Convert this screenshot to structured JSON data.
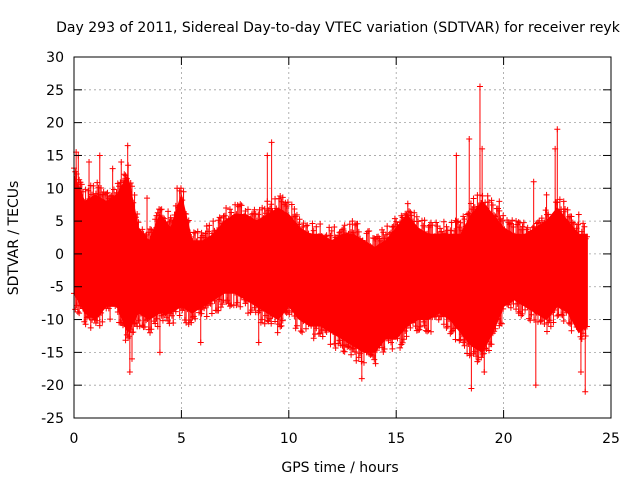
{
  "chart_data": {
    "type": "scatter",
    "title": "Day 293 of 2011, Sidereal Day-to-day VTEC variation (SDTVAR) for receiver reyk",
    "xlabel": "GPS time / hours",
    "ylabel": "SDTVAR / TECUs",
    "xlim": [
      0,
      25
    ],
    "ylim": [
      -25,
      30
    ],
    "xticks": [
      0,
      5,
      10,
      15,
      20,
      25
    ],
    "yticks": [
      -25,
      -20,
      -15,
      -10,
      -5,
      0,
      5,
      10,
      15,
      20,
      25,
      30
    ],
    "grid": true,
    "marker": "+",
    "color": "#ff0000",
    "envelope": {
      "x": [
        0,
        0.5,
        1,
        1.5,
        2,
        2.5,
        3,
        3.5,
        4,
        4.5,
        5,
        5.5,
        6,
        6.5,
        7,
        7.5,
        8,
        8.5,
        9,
        9.5,
        10,
        10.5,
        11,
        11.5,
        12,
        12.5,
        13,
        13.5,
        14,
        14.5,
        15,
        15.5,
        16,
        16.5,
        17,
        17.5,
        18,
        18.5,
        19,
        19.5,
        20,
        20.5,
        21,
        21.5,
        22,
        22.5,
        23,
        23.5,
        23.9
      ],
      "upper": [
        12,
        8,
        9,
        8,
        9,
        12,
        4,
        2,
        6,
        4,
        9,
        2,
        2,
        3,
        5,
        6,
        6,
        5,
        6,
        7,
        6,
        4,
        3,
        3,
        2,
        3,
        3,
        2,
        1,
        2,
        4,
        6,
        4,
        3,
        3,
        3,
        3,
        6,
        8,
        6,
        4,
        3,
        3,
        4,
        5,
        7,
        5,
        3,
        3
      ],
      "lower": [
        -6,
        -9,
        -10,
        -8,
        -8,
        -12,
        -9,
        -10,
        -9,
        -9,
        -8,
        -9,
        -8,
        -7,
        -6,
        -6,
        -7,
        -8,
        -9,
        -10,
        -8,
        -10,
        -11,
        -11,
        -12,
        -13,
        -14,
        -15,
        -15,
        -13,
        -13,
        -11,
        -10,
        -10,
        -9,
        -10,
        -12,
        -14,
        -15,
        -12,
        -8,
        -7,
        -8,
        -9,
        -10,
        -8,
        -9,
        -12,
        -11
      ]
    },
    "spikes": [
      {
        "x": 0.1,
        "y": 15.5
      },
      {
        "x": 0.2,
        "y": 15
      },
      {
        "x": 0.25,
        "y": -4
      },
      {
        "x": 0.7,
        "y": 14
      },
      {
        "x": 1.2,
        "y": 15
      },
      {
        "x": 1.8,
        "y": 13
      },
      {
        "x": 2.2,
        "y": 14
      },
      {
        "x": 2.5,
        "y": 16.5
      },
      {
        "x": 2.6,
        "y": -18
      },
      {
        "x": 2.7,
        "y": -16
      },
      {
        "x": 3.4,
        "y": 8.5
      },
      {
        "x": 4.0,
        "y": -15
      },
      {
        "x": 4.8,
        "y": 10
      },
      {
        "x": 5.9,
        "y": -13.5
      },
      {
        "x": 8.6,
        "y": -13.5
      },
      {
        "x": 9.2,
        "y": 17
      },
      {
        "x": 9.0,
        "y": 15
      },
      {
        "x": 12.5,
        "y": -14
      },
      {
        "x": 13.4,
        "y": -19
      },
      {
        "x": 17.8,
        "y": 15
      },
      {
        "x": 18.4,
        "y": 17.5
      },
      {
        "x": 18.5,
        "y": -20.5
      },
      {
        "x": 18.9,
        "y": 25.5
      },
      {
        "x": 19.0,
        "y": 16
      },
      {
        "x": 19.1,
        "y": -18
      },
      {
        "x": 19.8,
        "y": 8
      },
      {
        "x": 21.4,
        "y": 11
      },
      {
        "x": 21.5,
        "y": -20
      },
      {
        "x": 22.0,
        "y": 9
      },
      {
        "x": 22.5,
        "y": 19
      },
      {
        "x": 22.4,
        "y": 16
      },
      {
        "x": 22.8,
        "y": 8
      },
      {
        "x": 23.5,
        "y": 6
      },
      {
        "x": 23.6,
        "y": -18
      },
      {
        "x": 23.8,
        "y": -21
      }
    ]
  }
}
